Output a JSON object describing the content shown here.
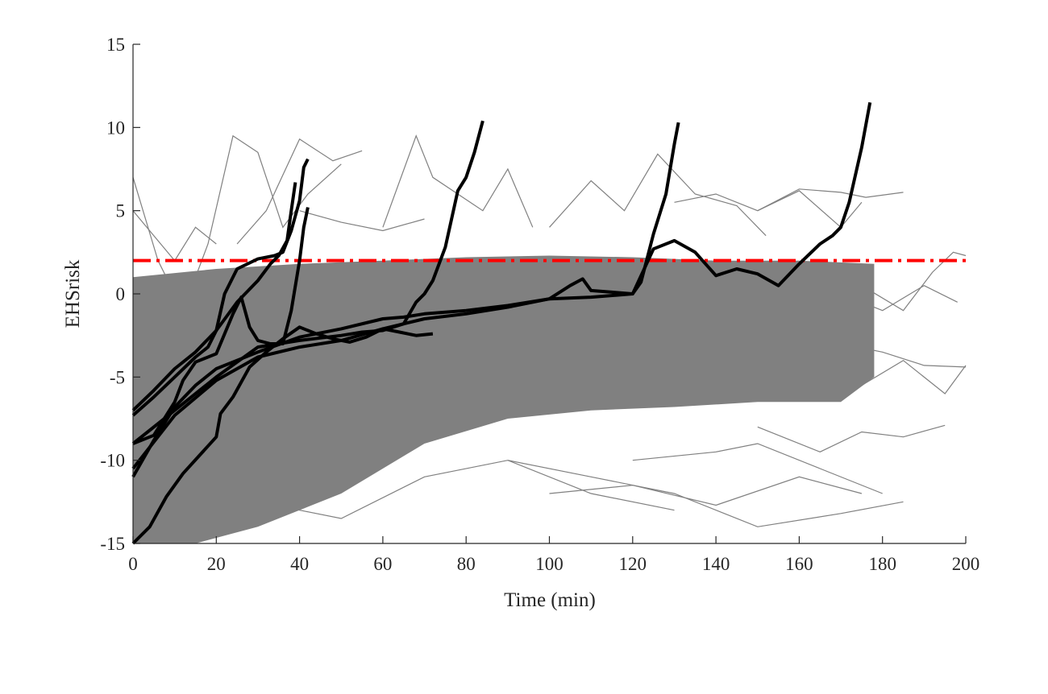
{
  "chart_data": {
    "type": "line",
    "title": "",
    "xlabel": "Time (min)",
    "ylabel": "EHSrisk",
    "xlim": [
      0,
      200
    ],
    "ylim": [
      -15,
      15
    ],
    "xticks": [
      0,
      20,
      40,
      60,
      80,
      100,
      120,
      140,
      160,
      180,
      200
    ],
    "yticks": [
      -15,
      -10,
      -5,
      0,
      5,
      10,
      15
    ],
    "grid": false,
    "legend": "none",
    "threshold": {
      "y": 2,
      "color": "#ff0000",
      "style": "dash-dot"
    },
    "colors": {
      "background_series": "#808080",
      "highlight_series": "#000000",
      "axis": "#262626"
    },
    "background_band": {
      "description_color": "#808080",
      "upper": [
        [
          0,
          1
        ],
        [
          20,
          1.5
        ],
        [
          40,
          1.8
        ],
        [
          60,
          2.0
        ],
        [
          80,
          2.2
        ],
        [
          100,
          2.3
        ],
        [
          120,
          2.2
        ],
        [
          140,
          2.0
        ],
        [
          160,
          2.0
        ],
        [
          178,
          1.8
        ]
      ],
      "lower": [
        [
          0,
          -15
        ],
        [
          15,
          -15
        ],
        [
          30,
          -14
        ],
        [
          50,
          -12
        ],
        [
          70,
          -9
        ],
        [
          90,
          -7.5
        ],
        [
          110,
          -7
        ],
        [
          130,
          -6.8
        ],
        [
          150,
          -6.5
        ],
        [
          170,
          -6.5
        ],
        [
          178,
          -5
        ]
      ]
    },
    "background_series": [
      {
        "x": [
          0,
          6,
          12,
          18,
          24,
          30,
          36,
          42,
          50
        ],
        "y": [
          7,
          2,
          -1,
          3,
          9.5,
          8.5,
          4,
          6,
          7.8
        ]
      },
      {
        "x": [
          25,
          32,
          40,
          48,
          55
        ],
        "y": [
          3,
          5,
          9.3,
          8,
          8.6
        ]
      },
      {
        "x": [
          60,
          68,
          72,
          78,
          84,
          90,
          96
        ],
        "y": [
          4,
          9.5,
          7,
          6,
          5,
          7.5,
          4
        ]
      },
      {
        "x": [
          100,
          110,
          118,
          126,
          135,
          145,
          152
        ],
        "y": [
          4,
          6.8,
          5,
          8.4,
          6,
          5.3,
          3.5
        ]
      },
      {
        "x": [
          130,
          140,
          150,
          160,
          170,
          175
        ],
        "y": [
          5.5,
          6,
          5,
          6.2,
          4,
          5.5
        ]
      },
      {
        "x": [
          150,
          160,
          170,
          176,
          185
        ],
        "y": [
          5,
          6.3,
          6.1,
          5.8,
          6.1
        ]
      },
      {
        "x": [
          10,
          30,
          50,
          70,
          90,
          110,
          130
        ],
        "y": [
          -13,
          -12.5,
          -13.5,
          -11,
          -10,
          -12,
          -13
        ]
      },
      {
        "x": [
          90,
          110,
          130,
          150,
          170,
          185
        ],
        "y": [
          -10,
          -11,
          -12,
          -14,
          -13.2,
          -12.5
        ]
      },
      {
        "x": [
          100,
          120,
          140,
          160,
          175
        ],
        "y": [
          -12,
          -11.5,
          -12.7,
          -11,
          -12
        ]
      },
      {
        "x": [
          120,
          140,
          150,
          165,
          180
        ],
        "y": [
          -10,
          -9.5,
          -9,
          -10.5,
          -12
        ]
      },
      {
        "x": [
          150,
          165,
          175,
          185,
          195
        ],
        "y": [
          -8,
          -9.5,
          -8.3,
          -8.6,
          -7.9
        ]
      },
      {
        "x": [
          165,
          175,
          185,
          195,
          200
        ],
        "y": [
          -3.5,
          -5.5,
          -4,
          -6,
          -4.3
        ]
      },
      {
        "x": [
          175,
          185,
          192,
          197,
          200
        ],
        "y": [
          0.5,
          -1,
          1.3,
          2.5,
          2.3
        ]
      },
      {
        "x": [
          160,
          170,
          180,
          190,
          200
        ],
        "y": [
          -2,
          -3,
          -3.5,
          -4.3,
          -4.4
        ]
      },
      {
        "x": [
          170,
          180,
          190,
          198
        ],
        "y": [
          0,
          -1,
          0.5,
          -0.5
        ]
      },
      {
        "x": [
          0,
          5,
          10,
          15,
          20
        ],
        "y": [
          5,
          3.5,
          2,
          4,
          3
        ]
      },
      {
        "x": [
          40,
          50,
          60,
          70
        ],
        "y": [
          5,
          4.3,
          3.8,
          4.5
        ]
      },
      {
        "x": [
          20,
          25,
          30,
          35
        ],
        "y": [
          -14,
          -13,
          -12.8,
          -11.8
        ]
      }
    ],
    "series": [
      {
        "color": "#000000",
        "x": [
          0,
          5,
          10,
          15,
          20,
          25,
          30,
          33,
          35,
          37,
          38,
          39
        ],
        "y": [
          -7,
          -5.8,
          -4.5,
          -3.5,
          -2.2,
          -0.5,
          0.8,
          1.8,
          2.3,
          3.2,
          5,
          6.7
        ]
      },
      {
        "color": "#000000",
        "x": [
          0,
          5,
          10,
          15,
          18,
          20,
          22,
          25,
          30,
          34,
          36,
          38,
          40,
          41,
          42
        ],
        "y": [
          -7.3,
          -6.2,
          -5,
          -3.8,
          -3.2,
          -2.2,
          0,
          1.5,
          2.1,
          2.3,
          2.5,
          3.8,
          5.6,
          7.6,
          8.1
        ]
      },
      {
        "color": "#000000",
        "x": [
          0,
          5,
          10,
          12,
          15,
          20,
          24,
          26,
          28,
          30,
          33,
          36,
          38,
          40,
          41,
          42
        ],
        "y": [
          -9,
          -8.5,
          -6.5,
          -5.2,
          -4.1,
          -3.6,
          -1.2,
          -0.2,
          -2,
          -2.8,
          -3,
          -3,
          -1,
          2,
          4,
          5.2
        ]
      },
      {
        "color": "#000000",
        "x": [
          0,
          10,
          20,
          30,
          40,
          50,
          55,
          60,
          65,
          68,
          70,
          72,
          75,
          78,
          80,
          82,
          84
        ],
        "y": [
          -9,
          -7,
          -5,
          -3.2,
          -2.8,
          -2.5,
          -2.3,
          -2.2,
          -1.8,
          -0.5,
          0,
          0.8,
          2.8,
          6.2,
          7,
          8.5,
          10.4
        ]
      },
      {
        "color": "#000000",
        "x": [
          0,
          10,
          20,
          30,
          40,
          50,
          60,
          70,
          80,
          90,
          100,
          105,
          108,
          110,
          115,
          120,
          122,
          125,
          128,
          130,
          131
        ],
        "y": [
          -10.5,
          -7.3,
          -5.2,
          -3.8,
          -3.2,
          -2.8,
          -2.1,
          -1.5,
          -1.2,
          -0.8,
          -0.3,
          0.5,
          0.9,
          0.2,
          0.1,
          0,
          0.7,
          3.6,
          6,
          9,
          10.3
        ]
      },
      {
        "color": "#000000",
        "x": [
          0,
          5,
          10,
          15,
          20,
          30,
          40,
          50,
          60,
          65,
          70,
          80,
          90,
          100,
          110,
          120,
          125,
          130,
          135,
          140,
          145,
          150,
          155,
          160,
          165,
          168,
          170,
          172,
          175,
          177
        ],
        "y": [
          -11,
          -8.8,
          -6.8,
          -5.5,
          -4.5,
          -3.5,
          -2.6,
          -2.1,
          -1.5,
          -1.4,
          -1.2,
          -1,
          -0.7,
          -0.3,
          -0.2,
          0,
          2.7,
          3.2,
          2.5,
          1.1,
          1.5,
          1.2,
          0.5,
          1.8,
          3,
          3.5,
          4,
          5.5,
          8.8,
          11.5
        ]
      },
      {
        "color": "#000000",
        "x": [
          0,
          4,
          8,
          12,
          16,
          20,
          21,
          24,
          28,
          32,
          36,
          40,
          44,
          48,
          52,
          56,
          60,
          64,
          68,
          72
        ],
        "y": [
          -15,
          -14,
          -12.2,
          -10.8,
          -9.7,
          -8.6,
          -7.2,
          -6.2,
          -4.4,
          -3.5,
          -2.7,
          -2,
          -2.4,
          -2.7,
          -2.9,
          -2.6,
          -2.1,
          -2.3,
          -2.5,
          -2.4
        ]
      }
    ]
  }
}
